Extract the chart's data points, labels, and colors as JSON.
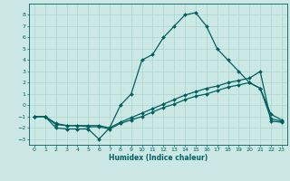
{
  "xlabel": "Humidex (Indice chaleur)",
  "bg_color": "#cce8e4",
  "line_color": "#006060",
  "grid_color": "#b0d8d4",
  "xlim": [
    -0.5,
    23.5
  ],
  "ylim": [
    -3.5,
    9.0
  ],
  "yticks": [
    -3,
    -2,
    -1,
    0,
    1,
    2,
    3,
    4,
    5,
    6,
    7,
    8
  ],
  "xticks": [
    0,
    1,
    2,
    3,
    4,
    5,
    6,
    7,
    8,
    9,
    10,
    11,
    12,
    13,
    14,
    15,
    16,
    17,
    18,
    19,
    20,
    21,
    22,
    23
  ],
  "line1_x": [
    0,
    1,
    2,
    3,
    4,
    5,
    6,
    7,
    8,
    9,
    10,
    11,
    12,
    13,
    14,
    15,
    16,
    17,
    18,
    19,
    20,
    21,
    22,
    23
  ],
  "line1_y": [
    -1,
    -1,
    -2,
    -2.1,
    -2.1,
    -2.1,
    -3,
    -2,
    0,
    1,
    4,
    4.5,
    6,
    7,
    8,
    8.2,
    7,
    5,
    4,
    3,
    2,
    1.5,
    -0.8,
    -1.3
  ],
  "line2_x": [
    0,
    1,
    2,
    3,
    4,
    5,
    6,
    7,
    8,
    9,
    10,
    11,
    12,
    13,
    14,
    15,
    16,
    17,
    18,
    19,
    20,
    21,
    22,
    23
  ],
  "line2_y": [
    -1,
    -1,
    -1.7,
    -1.8,
    -1.8,
    -1.8,
    -1.8,
    -2.0,
    -1.5,
    -1.1,
    -0.7,
    -0.3,
    0.1,
    0.5,
    0.9,
    1.2,
    1.5,
    1.7,
    2.0,
    2.2,
    2.4,
    3.0,
    -1.4,
    -1.5
  ],
  "line3_x": [
    0,
    1,
    2,
    3,
    4,
    5,
    6,
    7,
    8,
    9,
    10,
    11,
    12,
    13,
    14,
    15,
    16,
    17,
    18,
    19,
    20,
    21,
    22,
    23
  ],
  "line3_y": [
    -1,
    -1,
    -1.6,
    -1.8,
    -1.8,
    -1.9,
    -1.9,
    -2.1,
    -1.6,
    -1.3,
    -1.0,
    -0.6,
    -0.2,
    0.1,
    0.5,
    0.8,
    1.0,
    1.3,
    1.6,
    1.8,
    2.0,
    1.5,
    -1.2,
    -1.4
  ]
}
